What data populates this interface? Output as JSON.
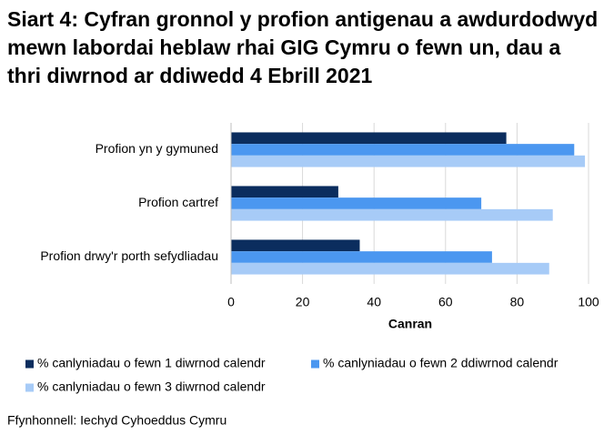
{
  "chart_data": {
    "type": "barh",
    "title": "Siart 4: Cyfran gronnol y profion antigenau a awdurdodwyd mewn labordai heblaw rhai GIG Cymru o fewn un, dau a thri diwrnod ar ddiwedd 4 Ebrill 2021",
    "categories": [
      "Profion yn y gymuned",
      "Profion cartref",
      "Profion drwy'r porth sefydliadau"
    ],
    "series": [
      {
        "name": "% canlyniadau o fewn 1 diwrnod calendr",
        "color": "#0b2d5e",
        "values": [
          77,
          30,
          36
        ]
      },
      {
        "name": "% canlyniadau o fewn 2 ddiwrnod calendr",
        "color": "#4b97f0",
        "values": [
          96,
          70,
          73
        ]
      },
      {
        "name": "% canlyniadau o fewn 3 diwrnod calendr",
        "color": "#a7cbf7",
        "values": [
          99,
          90,
          89
        ]
      }
    ],
    "xlabel": "Canran",
    "xlim": [
      0,
      100
    ],
    "xticks": [
      0,
      20,
      40,
      60,
      80,
      100
    ],
    "grid": true,
    "legend": "bottom",
    "source": "Ffynhonnell: Iechyd Cyhoeddus Cymru"
  }
}
